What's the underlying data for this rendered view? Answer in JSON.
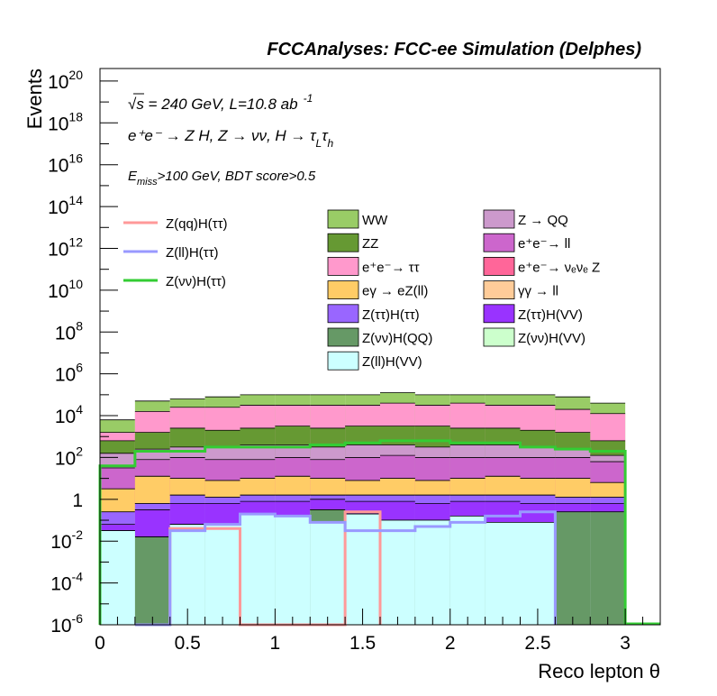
{
  "header": {
    "title": "FCCAnalyses: FCC-ee Simulation (Delphes)"
  },
  "annotations": {
    "line1": "√s = 240 GeV, L=10.8 ab",
    "line1_sup": "-1",
    "line2": "e⁺e⁻ → Z H, Z → νν, H → τ",
    "line2_sub1": "L",
    "line2_tau": "τ",
    "line2_sub2": "h",
    "line3_E": "E",
    "line3_sub": "miss",
    "line3_rest": ">100 GeV, BDT score>0.5"
  },
  "chart_data": {
    "type": "area",
    "xlabel": "Reco lepton θ",
    "ylabel": "Events",
    "xlim": [
      0,
      3.2
    ],
    "ylog": true,
    "ylim_log10": [
      -6,
      20.6
    ],
    "x_ticks": [
      {
        "v": 0,
        "t": "0"
      },
      {
        "v": 0.5,
        "t": "0.5"
      },
      {
        "v": 1,
        "t": "1"
      },
      {
        "v": 1.5,
        "t": "1.5"
      },
      {
        "v": 2,
        "t": "2"
      },
      {
        "v": 2.5,
        "t": "2.5"
      },
      {
        "v": 3,
        "t": "3"
      }
    ],
    "y_ticks": [
      {
        "e": -6,
        "t": "10",
        "s": "-6"
      },
      {
        "e": -4,
        "t": "10",
        "s": "-4"
      },
      {
        "e": -2,
        "t": "10",
        "s": "-2"
      },
      {
        "e": 0,
        "t": "1",
        "s": ""
      },
      {
        "e": 2,
        "t": "10",
        "s": "2"
      },
      {
        "e": 4,
        "t": "10",
        "s": "4"
      },
      {
        "e": 6,
        "t": "10",
        "s": "6"
      },
      {
        "e": 8,
        "t": "10",
        "s": "8"
      },
      {
        "e": 10,
        "t": "10",
        "s": "10"
      },
      {
        "e": 12,
        "t": "10",
        "s": "12"
      },
      {
        "e": 14,
        "t": "10",
        "s": "14"
      },
      {
        "e": 16,
        "t": "10",
        "s": "16"
      },
      {
        "e": 18,
        "t": "10",
        "s": "18"
      },
      {
        "e": 20,
        "t": "10",
        "s": "20"
      }
    ],
    "bin_edges": [
      0,
      0.2,
      0.4,
      0.6,
      0.8,
      1.0,
      1.2,
      1.4,
      1.6,
      1.8,
      2.0,
      2.2,
      2.4,
      2.6,
      2.8,
      3.0
    ],
    "stack": [
      {
        "name": "Z(ll)H(VV)",
        "color": "#ccffff",
        "top_log10": [
          -1.5,
          -6,
          -1.2,
          -1.2,
          -0.7,
          -0.8,
          -1.1,
          -0.7,
          -1.0,
          -1.0,
          -0.8,
          -1.1,
          -1.1,
          -6,
          -6
        ]
      },
      {
        "name": "Z(νν)H(QQ)",
        "color": "#669966",
        "top_log10": [
          -1.5,
          -1.8,
          -1.2,
          -1.2,
          -0.7,
          -0.8,
          -0.5,
          -0.7,
          -1.0,
          -1.0,
          -0.8,
          -1.1,
          -1.1,
          -0.6,
          -0.6
        ]
      },
      {
        "name": "Z(νν)H(VV)",
        "color": "#ccffcc",
        "top_log10": [
          -1.5,
          -1.8,
          -1.2,
          -1.2,
          -0.7,
          -0.8,
          -0.5,
          -0.7,
          -1.0,
          -1.0,
          -0.8,
          -1.1,
          -1.1,
          -0.6,
          -0.6
        ]
      },
      {
        "name": "Z(ττ)H(VV)",
        "color": "#9933ff",
        "top_log10": [
          -1.2,
          -0.5,
          -0.2,
          -0.2,
          -0.1,
          -0.1,
          0.0,
          -0.1,
          -0.1,
          -0.2,
          -0.1,
          -0.1,
          -0.2,
          -0.2,
          -0.2
        ]
      },
      {
        "name": "Z(ττ)H(ττ)",
        "color": "#9966ff",
        "top_log10": [
          -0.6,
          -0.2,
          0.2,
          0.1,
          0.2,
          0.2,
          0.2,
          0.2,
          0.2,
          0.2,
          0.2,
          0.2,
          0.2,
          0.1,
          0.1
        ]
      },
      {
        "name": "γγ → ll",
        "color": "#ffcc99",
        "top_log10": [
          -0.6,
          -0.2,
          0.2,
          0.1,
          0.2,
          0.2,
          0.2,
          0.2,
          0.2,
          0.2,
          0.2,
          0.2,
          0.2,
          0.1,
          0.1
        ]
      },
      {
        "name": "eγ → eZ(ll)",
        "color": "#ffcc66",
        "top_log10": [
          0.5,
          1.1,
          1.0,
          0.9,
          1.0,
          1.1,
          1.0,
          0.9,
          1.0,
          0.9,
          1.0,
          1.1,
          1.0,
          1.0,
          0.8
        ]
      },
      {
        "name": "e⁺e⁻ → νₑνₑ Z",
        "color": "#ff6699",
        "top_log10": [
          0.5,
          1.1,
          1.0,
          0.9,
          1.0,
          1.1,
          1.0,
          0.9,
          1.0,
          0.9,
          1.0,
          1.1,
          1.0,
          1.0,
          0.8
        ]
      },
      {
        "name": "e⁺e⁻ → ll",
        "color": "#cc66cc",
        "top_log10": [
          1.5,
          1.9,
          2.0,
          1.9,
          1.9,
          2.0,
          1.9,
          2.0,
          2.1,
          2.0,
          2.0,
          2.0,
          2.0,
          2.0,
          1.8
        ]
      },
      {
        "name": "Z → QQ",
        "color": "#cc99cc",
        "top_log10": [
          2.2,
          2.4,
          2.5,
          2.5,
          2.6,
          2.6,
          2.5,
          2.6,
          2.6,
          2.5,
          2.6,
          2.6,
          2.5,
          2.4,
          2.1
        ]
      },
      {
        "name": "ZZ",
        "color": "#669933",
        "top_log10": [
          2.8,
          3.2,
          3.4,
          3.3,
          3.4,
          3.5,
          3.4,
          3.5,
          3.5,
          3.5,
          3.4,
          3.4,
          3.3,
          3.2,
          2.8
        ]
      },
      {
        "name": "e⁺e⁻ → ττ",
        "color": "#ff99cc",
        "top_log10": [
          3.2,
          4.2,
          4.4,
          4.4,
          4.5,
          4.5,
          4.5,
          4.5,
          4.6,
          4.5,
          4.6,
          4.5,
          4.5,
          4.3,
          4.1
        ]
      },
      {
        "name": "WW",
        "color": "#99cc66",
        "top_log10": [
          3.8,
          4.7,
          4.8,
          4.9,
          5.0,
          5.0,
          5.0,
          5.0,
          5.1,
          5.0,
          5.0,
          5.0,
          5.0,
          4.9,
          4.6
        ]
      }
    ],
    "signals": [
      {
        "name": "Z(qq)H(ττ)",
        "color": "#ff9999",
        "edges": [
          0.2,
          0.4,
          0.6,
          0.8,
          1.0,
          1.2,
          1.4,
          1.6
        ],
        "log10": [
          -6,
          -1.4,
          -1.4,
          -6,
          -6,
          -6,
          -0.6
        ]
      },
      {
        "name": "Z(ll)H(ττ)",
        "color": "#9999ff",
        "edges": [
          0.2,
          0.4,
          0.6,
          0.8,
          1.0,
          1.2,
          1.4,
          1.6,
          1.8,
          2.0,
          2.2,
          2.4,
          2.6
        ],
        "log10": [
          -6,
          -1.5,
          -1.2,
          -0.7,
          -0.8,
          -1.1,
          -1.5,
          -1.5,
          -1.3,
          -1.1,
          -0.8,
          -0.6
        ]
      },
      {
        "name": "Z(νν)H(ττ)",
        "color": "#33cc33",
        "edges": [
          0,
          0.2,
          0.4,
          0.6,
          0.8,
          1.0,
          1.2,
          1.4,
          1.6,
          1.8,
          2.0,
          2.2,
          2.4,
          2.6,
          2.8,
          3.0
        ],
        "log10": [
          1.6,
          2.3,
          2.3,
          2.5,
          2.5,
          2.5,
          2.6,
          2.7,
          2.8,
          2.8,
          2.7,
          2.7,
          2.5,
          2.4,
          2.3
        ]
      }
    ],
    "legend_signals": [
      "Z(qq)H(ττ)",
      "Z(ll)H(ττ)",
      "Z(νν)H(ττ)"
    ],
    "legend_col1": [
      "WW",
      "ZZ",
      "e⁺e⁻→ ττ",
      "eγ → eZ(ll)",
      "Z(ττ)H(ττ)",
      "Z(νν)H(QQ)",
      "Z(ll)H(VV)"
    ],
    "legend_col2": [
      "Z → QQ",
      "e⁺e⁻→ ll",
      "e⁺e⁻→ νₑνₑ Z",
      "γγ → ll",
      "Z(ττ)H(VV)",
      "Z(νν)H(VV)"
    ],
    "legend_col1_colors": [
      "#99cc66",
      "#669933",
      "#ff99cc",
      "#ffcc66",
      "#9966ff",
      "#669966",
      "#ccffff"
    ],
    "legend_col2_colors": [
      "#cc99cc",
      "#cc66cc",
      "#ff6699",
      "#ffcc99",
      "#9933ff",
      "#ccffcc"
    ]
  }
}
